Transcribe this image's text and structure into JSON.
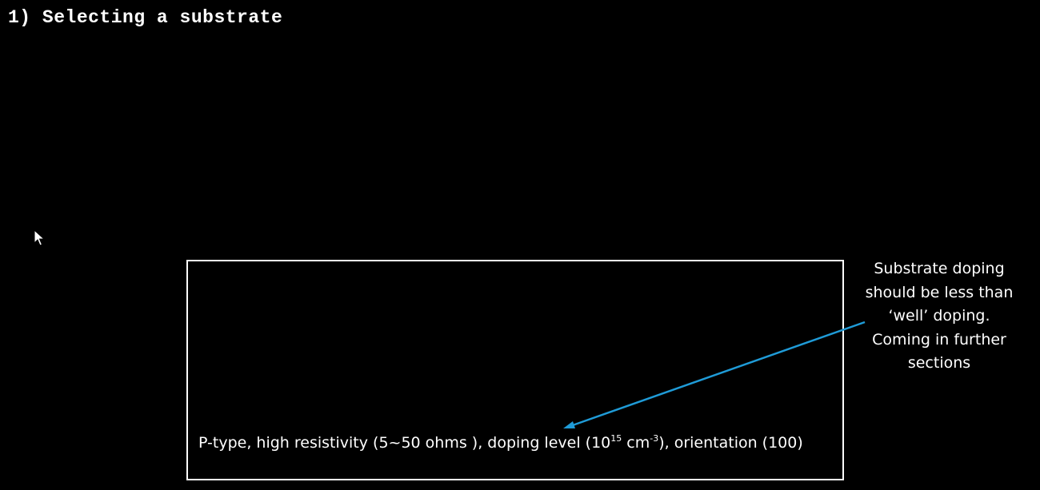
{
  "slide": {
    "title": "1) Selecting a substrate",
    "substrate_description": {
      "prefix": "P-type, high resistivity (5~50 ohms ), doping level (10",
      "doping_exponent": "15",
      "middle": " cm",
      "unit_exponent": "-3",
      "suffix": "), orientation (100)"
    },
    "note_lines": [
      "Substrate doping",
      "should be less than",
      "‘well’ doping.",
      "Coming in further",
      "sections"
    ]
  },
  "colors": {
    "background": "#000000",
    "text": "#ffffff",
    "box_border": "#ffffff",
    "arrow": "#1f9bd7"
  },
  "icons": {
    "cursor": "mouse-pointer-icon"
  }
}
